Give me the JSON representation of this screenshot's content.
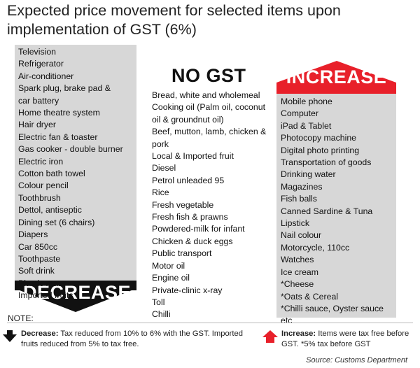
{
  "title": "Expected price movement for selected items upon implementation of GST (6%)",
  "colors": {
    "panel": "#d7d7d7",
    "decrease": "#111111",
    "increase": "#e8202a"
  },
  "decrease": {
    "label": "DECREASE",
    "items": [
      "Television",
      "Refrigerator",
      "Air-conditioner",
      "Spark plug, brake pad &",
      "car battery",
      "Home theatre system",
      "Hair dryer",
      "Electric fan & toaster",
      "Gas cooker - double burner",
      "Electric iron",
      "Cotton bath towel",
      "Colour pencil",
      "Toothbrush",
      "Dettol, antiseptic",
      "Dining set (6 chairs)",
      "Diapers",
      "Car 850cc",
      "Toothpaste",
      "Soft drink",
      "Plastic mat",
      "Imported fruits"
    ]
  },
  "no_gst": {
    "label": "NO GST",
    "items": [
      "Bread, white and wholemeal",
      "Cooking oil (Palm oil, coconut",
      "oil & groundnut oil)",
      "Beef, mutton, lamb, chicken &",
      "pork",
      "Local & Imported fruit",
      "Diesel",
      "Petrol unleaded 95",
      "Rice",
      "Fresh vegetable",
      "Fresh fish & prawns",
      "Powdered-milk for infant",
      "Chicken & duck eggs",
      "Public transport",
      "Motor oil",
      "Engine oil",
      "Private-clinic x-ray",
      "Toll",
      "Chilli"
    ]
  },
  "increase": {
    "label": "INCREASE",
    "items": [
      "Mobile phone",
      "Computer",
      "iPad & Tablet",
      "Photocopy machine",
      "Digital photo printing",
      "Transportation of goods",
      "Drinking water",
      "Magazines",
      "Fish balls",
      "Canned Sardine & Tuna",
      "Lipstick",
      "Nail colour",
      "Motorcycle, 110cc",
      "Watches",
      "Ice cream",
      "*Cheese",
      "*Oats & Cereal",
      "*Chilli sauce, Oyster sauce etc"
    ]
  },
  "note": {
    "title": "NOTE:",
    "decrease_key": "Decrease:",
    "decrease_text": " Tax reduced from 10% to 6% with the GST. Imported fruits reduced from 5% to tax free.",
    "increase_key": "Increase:",
    "increase_text": " Items were tax free before GST. *5% tax before GST"
  },
  "source": "Source: Customs Department"
}
